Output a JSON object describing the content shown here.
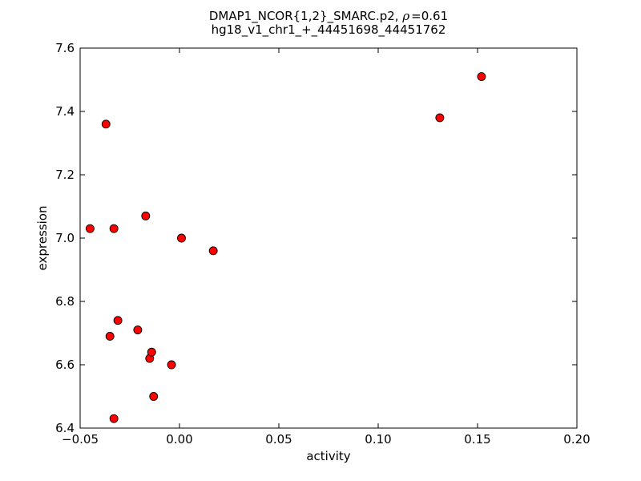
{
  "chart_data": {
    "type": "scatter",
    "title": "DMAP1_NCOR{1,2}_SMARC.p2, ρ=0.61",
    "title_parts": {
      "prefix": "DMAP1_NCOR{1,2}_SMARC.p2, ",
      "rho_symbol": "ρ",
      "rho_value": "=0.61"
    },
    "subtitle": "hg18_v1_chr1_+_44451698_44451762",
    "rho": 0.61,
    "xlabel": "activity",
    "ylabel": "expression",
    "xlim": [
      -0.05,
      0.2
    ],
    "ylim": [
      6.4,
      7.6
    ],
    "xticks": [
      -0.05,
      0.0,
      0.05,
      0.1,
      0.15,
      0.2
    ],
    "xtick_labels": [
      "−0.05",
      "0.00",
      "0.05",
      "0.10",
      "0.15",
      "0.20"
    ],
    "yticks": [
      6.4,
      6.6,
      6.8,
      7.0,
      7.2,
      7.4,
      7.6
    ],
    "ytick_labels": [
      "6.4",
      "6.6",
      "6.8",
      "7.0",
      "7.2",
      "7.4",
      "7.6"
    ],
    "grid": false,
    "legend": null,
    "marker": {
      "shape": "circle",
      "fill_color": "#ff0000",
      "edge_color": "#000000",
      "radius_px": 5
    },
    "frame_color": "#000000",
    "background_color": "#ffffff",
    "points": [
      {
        "x": -0.045,
        "y": 7.03
      },
      {
        "x": -0.037,
        "y": 7.36
      },
      {
        "x": -0.035,
        "y": 6.69
      },
      {
        "x": -0.033,
        "y": 7.03
      },
      {
        "x": -0.033,
        "y": 6.43
      },
      {
        "x": -0.031,
        "y": 6.74
      },
      {
        "x": -0.021,
        "y": 6.71
      },
      {
        "x": -0.017,
        "y": 7.07
      },
      {
        "x": -0.015,
        "y": 6.62
      },
      {
        "x": -0.014,
        "y": 6.64
      },
      {
        "x": -0.013,
        "y": 6.5
      },
      {
        "x": -0.004,
        "y": 6.6
      },
      {
        "x": 0.001,
        "y": 7.0
      },
      {
        "x": 0.017,
        "y": 6.96
      },
      {
        "x": 0.131,
        "y": 7.38
      },
      {
        "x": 0.152,
        "y": 7.51
      }
    ]
  }
}
